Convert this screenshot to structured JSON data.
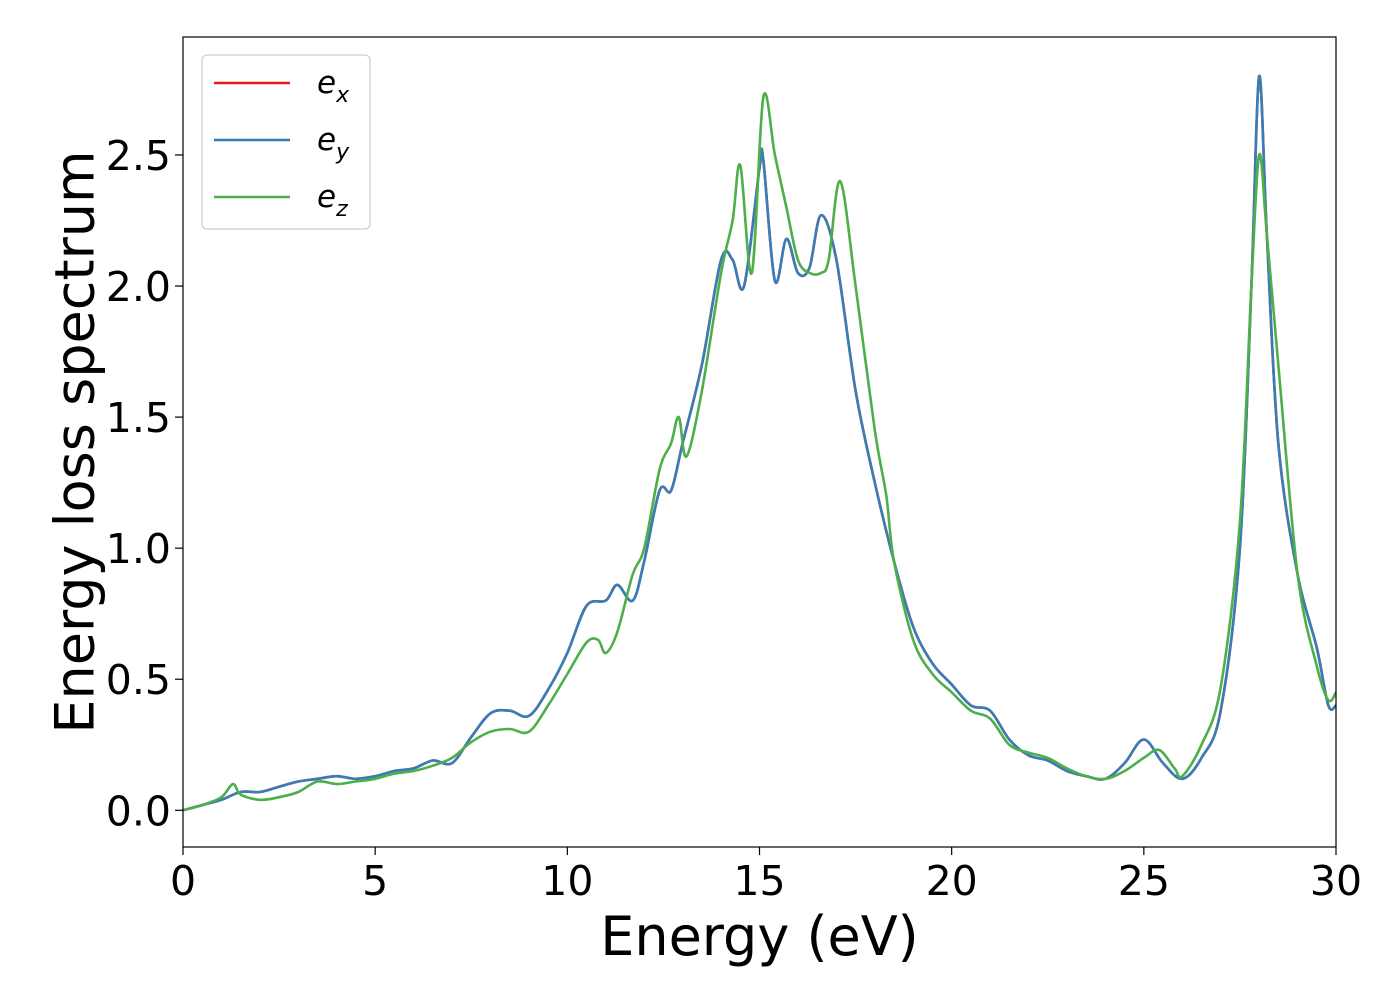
{
  "chart_data": {
    "type": "line",
    "title": "",
    "xlabel": "Energy (eV)",
    "ylabel": "Energy loss spectrum",
    "xlim": [
      0,
      30
    ],
    "ylim": [
      -0.14,
      2.95
    ],
    "xticks": [
      0,
      5,
      10,
      15,
      20,
      25,
      30
    ],
    "xtick_labels": [
      "0",
      "5",
      "10",
      "15",
      "20",
      "25",
      "30"
    ],
    "yticks": [
      0.0,
      0.5,
      1.0,
      1.5,
      2.0,
      2.5
    ],
    "ytick_labels": [
      "0.0",
      "0.5",
      "1.0",
      "1.5",
      "2.0",
      "2.5"
    ],
    "grid": false,
    "legend_position": "top-left",
    "series": [
      {
        "name": "e_x",
        "legend_base": "e",
        "legend_sub": "x",
        "color": "#e41a1c",
        "x": [
          0,
          0.5,
          1.0,
          1.5,
          2.0,
          2.5,
          3.0,
          3.5,
          4.0,
          4.5,
          5.0,
          5.5,
          6.0,
          6.5,
          7.0,
          7.5,
          8.0,
          8.5,
          9.0,
          9.5,
          10.0,
          10.5,
          11.0,
          11.3,
          11.7,
          12.0,
          12.4,
          12.7,
          13.0,
          13.5,
          14.0,
          14.3,
          14.6,
          15.0,
          15.1,
          15.4,
          15.7,
          16.0,
          16.3,
          16.6,
          17.0,
          17.5,
          18.0,
          18.5,
          19.0,
          19.5,
          20.0,
          20.5,
          21.0,
          21.5,
          22.0,
          22.5,
          23.0,
          23.5,
          24.0,
          24.5,
          25.0,
          25.5,
          26.0,
          26.5,
          27.0,
          27.5,
          27.8,
          28.0,
          28.2,
          28.5,
          29.0,
          29.5,
          29.8,
          30.0
        ],
        "y": [
          0.0,
          0.02,
          0.04,
          0.07,
          0.07,
          0.09,
          0.11,
          0.12,
          0.13,
          0.12,
          0.13,
          0.15,
          0.16,
          0.19,
          0.18,
          0.28,
          0.37,
          0.38,
          0.36,
          0.46,
          0.6,
          0.78,
          0.8,
          0.86,
          0.8,
          0.95,
          1.22,
          1.22,
          1.4,
          1.7,
          2.1,
          2.1,
          2.0,
          2.45,
          2.48,
          2.02,
          2.18,
          2.05,
          2.07,
          2.27,
          2.1,
          1.6,
          1.25,
          0.95,
          0.7,
          0.56,
          0.48,
          0.4,
          0.38,
          0.27,
          0.21,
          0.19,
          0.15,
          0.13,
          0.12,
          0.18,
          0.27,
          0.18,
          0.12,
          0.2,
          0.38,
          1.0,
          2.0,
          2.8,
          2.2,
          1.4,
          0.9,
          0.62,
          0.4,
          0.4
        ]
      },
      {
        "name": "e_y",
        "legend_base": "e",
        "legend_sub": "y",
        "color": "#377eb8",
        "x": [
          0,
          0.5,
          1.0,
          1.5,
          2.0,
          2.5,
          3.0,
          3.5,
          4.0,
          4.5,
          5.0,
          5.5,
          6.0,
          6.5,
          7.0,
          7.5,
          8.0,
          8.5,
          9.0,
          9.5,
          10.0,
          10.5,
          11.0,
          11.3,
          11.7,
          12.0,
          12.4,
          12.7,
          13.0,
          13.5,
          14.0,
          14.3,
          14.6,
          15.0,
          15.1,
          15.4,
          15.7,
          16.0,
          16.3,
          16.6,
          17.0,
          17.5,
          18.0,
          18.5,
          19.0,
          19.5,
          20.0,
          20.5,
          21.0,
          21.5,
          22.0,
          22.5,
          23.0,
          23.5,
          24.0,
          24.5,
          25.0,
          25.5,
          26.0,
          26.5,
          27.0,
          27.5,
          27.8,
          28.0,
          28.2,
          28.5,
          29.0,
          29.5,
          29.8,
          30.0
        ],
        "y": [
          0.0,
          0.02,
          0.04,
          0.07,
          0.07,
          0.09,
          0.11,
          0.12,
          0.13,
          0.12,
          0.13,
          0.15,
          0.16,
          0.19,
          0.18,
          0.28,
          0.37,
          0.38,
          0.36,
          0.46,
          0.6,
          0.78,
          0.8,
          0.86,
          0.8,
          0.95,
          1.22,
          1.22,
          1.4,
          1.7,
          2.1,
          2.1,
          2.0,
          2.45,
          2.48,
          2.02,
          2.18,
          2.05,
          2.07,
          2.27,
          2.1,
          1.6,
          1.25,
          0.95,
          0.7,
          0.56,
          0.48,
          0.4,
          0.38,
          0.27,
          0.21,
          0.19,
          0.15,
          0.13,
          0.12,
          0.18,
          0.27,
          0.18,
          0.12,
          0.2,
          0.38,
          1.0,
          2.0,
          2.8,
          2.2,
          1.4,
          0.9,
          0.62,
          0.4,
          0.4
        ]
      },
      {
        "name": "e_z",
        "legend_base": "e",
        "legend_sub": "z",
        "color": "#4daf4a",
        "x": [
          0,
          0.5,
          1.0,
          1.3,
          1.5,
          2.0,
          2.5,
          3.0,
          3.5,
          4.0,
          4.5,
          5.0,
          5.5,
          6.0,
          6.5,
          7.0,
          7.5,
          8.0,
          8.5,
          9.0,
          9.5,
          10.0,
          10.5,
          10.8,
          11.0,
          11.3,
          11.7,
          12.0,
          12.4,
          12.7,
          12.9,
          13.1,
          13.5,
          14.0,
          14.3,
          14.5,
          14.8,
          15.1,
          15.4,
          15.7,
          16.0,
          16.3,
          16.6,
          16.8,
          17.1,
          17.5,
          18.0,
          18.3,
          18.5,
          19.0,
          19.5,
          20.0,
          20.5,
          21.0,
          21.5,
          22.0,
          22.5,
          23.0,
          23.5,
          24.0,
          24.5,
          25.0,
          25.4,
          25.8,
          26.0,
          26.5,
          27.0,
          27.5,
          27.8,
          28.0,
          28.2,
          28.5,
          29.0,
          29.5,
          29.8,
          30.0
        ],
        "y": [
          0.0,
          0.02,
          0.05,
          0.1,
          0.06,
          0.04,
          0.05,
          0.07,
          0.11,
          0.1,
          0.11,
          0.12,
          0.14,
          0.15,
          0.17,
          0.2,
          0.26,
          0.3,
          0.31,
          0.3,
          0.4,
          0.52,
          0.64,
          0.65,
          0.6,
          0.68,
          0.9,
          1.0,
          1.3,
          1.4,
          1.5,
          1.35,
          1.6,
          2.05,
          2.25,
          2.46,
          2.05,
          2.72,
          2.5,
          2.3,
          2.1,
          2.05,
          2.05,
          2.1,
          2.4,
          2.0,
          1.45,
          1.2,
          0.95,
          0.65,
          0.52,
          0.45,
          0.38,
          0.35,
          0.25,
          0.22,
          0.2,
          0.16,
          0.13,
          0.12,
          0.15,
          0.2,
          0.23,
          0.16,
          0.13,
          0.25,
          0.47,
          1.1,
          2.0,
          2.5,
          2.2,
          1.7,
          0.9,
          0.55,
          0.42,
          0.45
        ]
      }
    ]
  }
}
